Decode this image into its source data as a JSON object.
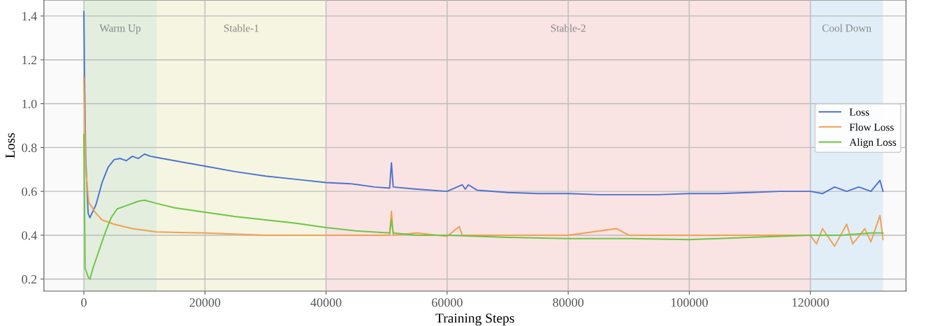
{
  "chart_data": {
    "type": "line",
    "xlabel": "Training Steps",
    "ylabel": "Loss",
    "xlim": [
      -6600,
      135800
    ],
    "ylim": [
      0.145,
      1.473
    ],
    "xticks": [
      0,
      20000,
      40000,
      60000,
      80000,
      100000,
      120000
    ],
    "yticks": [
      0.2,
      0.4,
      0.6,
      0.8,
      {
        "value": 1.0,
        "label": "1.0"
      },
      1.2,
      1.4
    ],
    "grid": true,
    "legend": "right",
    "line_style": "solid",
    "marker": "none",
    "bands": [
      {
        "axis": "x",
        "from": 0,
        "to": 12000,
        "label": "Warm Up",
        "color": "#e3eedf"
      },
      {
        "axis": "x",
        "from": 12000,
        "to": 40000,
        "label": "Stable-1",
        "color": "#f5f5e1"
      },
      {
        "axis": "x",
        "from": 40000,
        "to": 120000,
        "label": "Stable-2",
        "color": "#fae3e3"
      },
      {
        "axis": "x",
        "from": 120000,
        "to": 132000,
        "label": "Cool Down",
        "color": "#e1eef7"
      }
    ],
    "series": [
      {
        "name": "Loss",
        "color": "#4c72d0",
        "x": [
          0,
          100,
          300,
          700,
          1000,
          2000,
          3000,
          4000,
          5000,
          6000,
          7000,
          8000,
          9000,
          10000,
          11000,
          12000,
          15000,
          20000,
          25000,
          30000,
          35000,
          40000,
          44000,
          48000,
          50500,
          50800,
          51100,
          55000,
          60000,
          62500,
          63000,
          63500,
          65000,
          70000,
          75000,
          80000,
          85000,
          90000,
          95000,
          100000,
          105000,
          110000,
          115000,
          120000,
          122000,
          124000,
          126000,
          128000,
          130000,
          131500,
          132000
        ],
        "values": [
          1.42,
          1.12,
          0.75,
          0.5,
          0.48,
          0.54,
          0.64,
          0.71,
          0.745,
          0.75,
          0.74,
          0.76,
          0.75,
          0.77,
          0.76,
          0.755,
          0.74,
          0.715,
          0.69,
          0.67,
          0.655,
          0.64,
          0.635,
          0.62,
          0.615,
          0.73,
          0.62,
          0.61,
          0.6,
          0.63,
          0.61,
          0.63,
          0.605,
          0.595,
          0.59,
          0.59,
          0.585,
          0.585,
          0.585,
          0.59,
          0.59,
          0.595,
          0.6,
          0.6,
          0.59,
          0.62,
          0.6,
          0.62,
          0.6,
          0.65,
          0.6
        ]
      },
      {
        "name": "Flow Loss",
        "color": "#f0a050",
        "x": [
          0,
          300,
          800,
          2000,
          3000,
          5000,
          8000,
          12000,
          20000,
          30000,
          40000,
          45000,
          50500,
          50800,
          51100,
          55000,
          60000,
          62000,
          62500,
          70000,
          80000,
          88000,
          90000,
          100000,
          110000,
          120000,
          121000,
          122000,
          124000,
          126000,
          127000,
          129000,
          130000,
          131500,
          132000
        ],
        "values": [
          1.12,
          0.7,
          0.55,
          0.5,
          0.47,
          0.45,
          0.43,
          0.415,
          0.41,
          0.4,
          0.4,
          0.4,
          0.4,
          0.51,
          0.4,
          0.41,
          0.395,
          0.44,
          0.4,
          0.4,
          0.4,
          0.43,
          0.4,
          0.4,
          0.4,
          0.4,
          0.36,
          0.43,
          0.35,
          0.45,
          0.36,
          0.43,
          0.37,
          0.49,
          0.38
        ]
      },
      {
        "name": "Align Loss",
        "color": "#6cc644",
        "x": [
          0,
          200,
          700,
          1000,
          1500,
          2500,
          3500,
          4500,
          5500,
          7000,
          9000,
          10000,
          12000,
          15000,
          20000,
          25000,
          30000,
          35000,
          40000,
          45000,
          50500,
          50800,
          51100,
          55000,
          60000,
          70000,
          80000,
          90000,
          100000,
          110000,
          120000,
          125000,
          130000,
          132000
        ],
        "values": [
          0.86,
          0.25,
          0.21,
          0.2,
          0.25,
          0.33,
          0.41,
          0.48,
          0.52,
          0.535,
          0.555,
          0.56,
          0.545,
          0.525,
          0.505,
          0.485,
          0.47,
          0.455,
          0.435,
          0.42,
          0.41,
          0.47,
          0.41,
          0.4,
          0.4,
          0.39,
          0.385,
          0.385,
          0.38,
          0.39,
          0.4,
          0.4,
          0.41,
          0.41
        ]
      }
    ]
  }
}
